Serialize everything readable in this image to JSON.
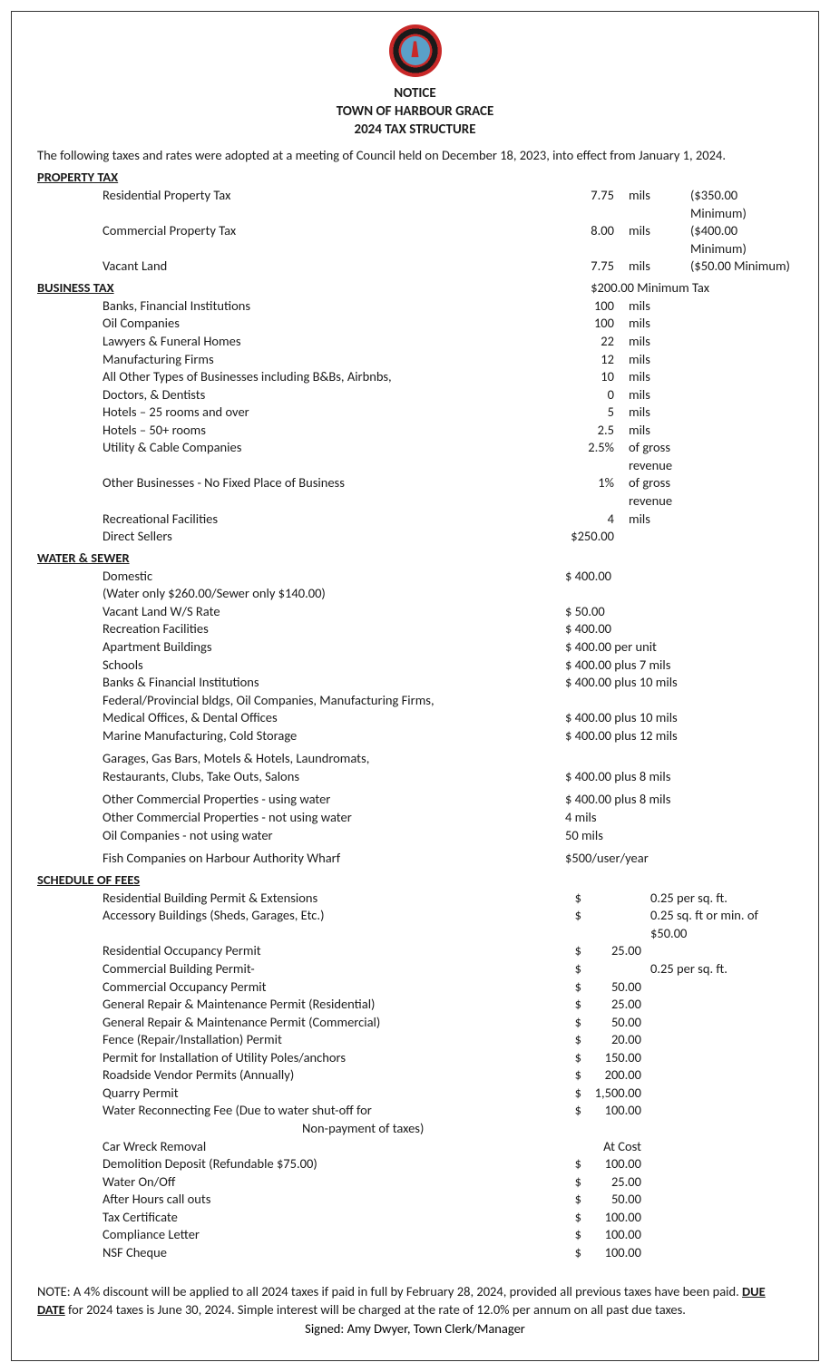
{
  "header": {
    "notice": "NOTICE",
    "town": "TOWN OF HARBOUR GRACE",
    "year": "2024 TAX STRUCTURE"
  },
  "intro": "The following taxes and rates were adopted at a meeting of Council held on December 18, 2023, into effect from January 1, 2024.",
  "property_tax": {
    "title": "PROPERTY TAX",
    "items": [
      {
        "label": "Residential Property Tax",
        "rate": "7.75",
        "unit": "mils",
        "note": "($350.00 Minimum)"
      },
      {
        "label": "Commercial Property Tax",
        "rate": "8.00",
        "unit": "mils",
        "note": "($400.00 Minimum)"
      },
      {
        "label": "Vacant Land",
        "rate": "7.75",
        "unit": "mils",
        "note": "($50.00 Minimum)"
      }
    ]
  },
  "business_tax": {
    "title": "BUSINESS TAX",
    "min_note": "$200.00 Minimum Tax",
    "items": [
      {
        "label": "Banks, Financial Institutions",
        "rate": "100",
        "unit": "mils"
      },
      {
        "label": "Oil Companies",
        "rate": "100",
        "unit": "mils"
      },
      {
        "label": "Lawyers & Funeral Homes",
        "rate": "22",
        "unit": "mils"
      },
      {
        "label": "Manufacturing Firms",
        "rate": "12",
        "unit": "mils"
      },
      {
        "label": "All Other Types of Businesses including B&Bs, Airbnbs,",
        "rate": "10",
        "unit": "mils"
      },
      {
        "label": "Doctors, & Dentists",
        "rate": "0",
        "unit": "mils"
      },
      {
        "label": "Hotels – 25 rooms and over",
        "rate": "5",
        "unit": "mils"
      },
      {
        "label": "Hotels – 50+ rooms",
        "rate": "2.5",
        "unit": "mils"
      },
      {
        "label": "Utility & Cable Companies",
        "rate": "2.5%",
        "unit": "of gross revenue"
      },
      {
        "label": "Other Businesses - No Fixed Place of Business",
        "rate": "1%",
        "unit": "of gross revenue"
      },
      {
        "label": "Recreational Facilities",
        "rate": "4",
        "unit": "mils"
      },
      {
        "label": "Direct Sellers",
        "rate": "$250.00",
        "unit": ""
      }
    ]
  },
  "water_sewer": {
    "title": "WATER & SEWER",
    "items": [
      {
        "label": "Domestic",
        "value": "$ 400.00"
      },
      {
        "label": "(Water only $260.00/Sewer only $140.00)",
        "value": ""
      },
      {
        "label": "Vacant Land W/S Rate",
        "value": "$   50.00"
      },
      {
        "label": "Recreation Facilities",
        "value": "$ 400.00"
      },
      {
        "label": "Apartment Buildings",
        "value": "$ 400.00 per unit"
      },
      {
        "label": "Schools",
        "value": "$ 400.00 plus 7 mils"
      },
      {
        "label": "Banks & Financial Institutions",
        "value": "$ 400.00 plus 10 mils"
      },
      {
        "label": "Federal/Provincial bldgs, Oil Companies, Manufacturing Firms,",
        "value": ""
      },
      {
        "label": "Medical Offices, & Dental Offices",
        "value": "$ 400.00 plus 10 mils"
      },
      {
        "label": "Marine Manufacturing, Cold Storage",
        "value": "$ 400.00 plus 12 mils"
      }
    ],
    "group2": [
      {
        "label": "Garages, Gas Bars, Motels & Hotels, Laundromats,",
        "value": ""
      },
      {
        "label": "Restaurants, Clubs, Take Outs, Salons",
        "value": "$ 400.00 plus 8 mils"
      }
    ],
    "group3": [
      {
        "label": "Other Commercial Properties - using water",
        "value": "$ 400.00 plus 8 mils"
      },
      {
        "label": "Other Commercial Properties - not using water",
        "value": "  4 mils"
      },
      {
        "label": "Oil Companies - not using water",
        "value": " 50 mils"
      }
    ],
    "group4": [
      {
        "label": "Fish Companies on Harbour Authority Wharf",
        "value": "$500/user/year"
      }
    ]
  },
  "fees": {
    "title": "SCHEDULE OF FEES",
    "items": [
      {
        "label": "Residential Building Permit & Extensions",
        "dollar": "$",
        "amount": "",
        "after": "0.25 per sq. ft."
      },
      {
        "label": "Accessory Buildings (Sheds, Garages, Etc.)",
        "dollar": "$",
        "amount": "",
        "after": "0.25 sq. ft or min. of $50.00"
      },
      {
        "label": "Residential Occupancy Permit",
        "dollar": "$",
        "amount": "25.00",
        "after": ""
      },
      {
        "label": "Commercial Building Permit-",
        "dollar": "$",
        "amount": "",
        "after": "0.25 per sq. ft."
      },
      {
        "label": "Commercial Occupancy Permit",
        "dollar": "$",
        "amount": "50.00",
        "after": ""
      },
      {
        "label": "General Repair & Maintenance Permit (Residential)",
        "dollar": "$",
        "amount": "25.00",
        "after": ""
      },
      {
        "label": "General Repair & Maintenance Permit (Commercial)",
        "dollar": "$",
        "amount": "50.00",
        "after": ""
      },
      {
        "label": "Fence (Repair/Installation) Permit",
        "dollar": "$",
        "amount": "20.00",
        "after": ""
      },
      {
        "label": "Permit for Installation of Utility Poles/anchors",
        "dollar": "$",
        "amount": "150.00",
        "after": ""
      },
      {
        "label": "Roadside Vendor Permits (Annually)",
        "dollar": "$",
        "amount": "200.00",
        "after": ""
      },
      {
        "label": "Quarry Permit",
        "dollar": "$",
        "amount": "1,500.00",
        "after": ""
      },
      {
        "label": "Water Reconnecting Fee (Due to water shut-off for",
        "dollar": "$",
        "amount": "100.00",
        "after": ""
      }
    ],
    "subline": "Non-payment of taxes)",
    "items2": [
      {
        "label": "Car Wreck Removal",
        "dollar": "",
        "amount": "At Cost",
        "after": ""
      },
      {
        "label": "Demolition Deposit (Refundable $75.00)",
        "dollar": "$",
        "amount": "100.00",
        "after": ""
      },
      {
        "label": "Water On/Off",
        "dollar": "$",
        "amount": "25.00",
        "after": ""
      },
      {
        "label": "After Hours call outs",
        "dollar": "$",
        "amount": "50.00",
        "after": ""
      },
      {
        "label": "Tax Certificate",
        "dollar": "$",
        "amount": "100.00",
        "after": ""
      },
      {
        "label": "Compliance Letter",
        "dollar": "$",
        "amount": "100.00",
        "after": ""
      },
      {
        "label": "NSF Cheque",
        "dollar": "$",
        "amount": "100.00",
        "after": ""
      }
    ]
  },
  "footer": {
    "note_pre": "NOTE: A 4% discount will be applied to all 2024 taxes if paid in full by February 28, 2024, provided all previous taxes have been paid. ",
    "due_label": "DUE DATE",
    "note_post": " for 2024 taxes is June 30, 2024.  Simple interest will be charged at the rate of 12.0% per annum on all past due taxes.",
    "signed": "Signed: Amy Dwyer, Town Clerk/Manager"
  }
}
